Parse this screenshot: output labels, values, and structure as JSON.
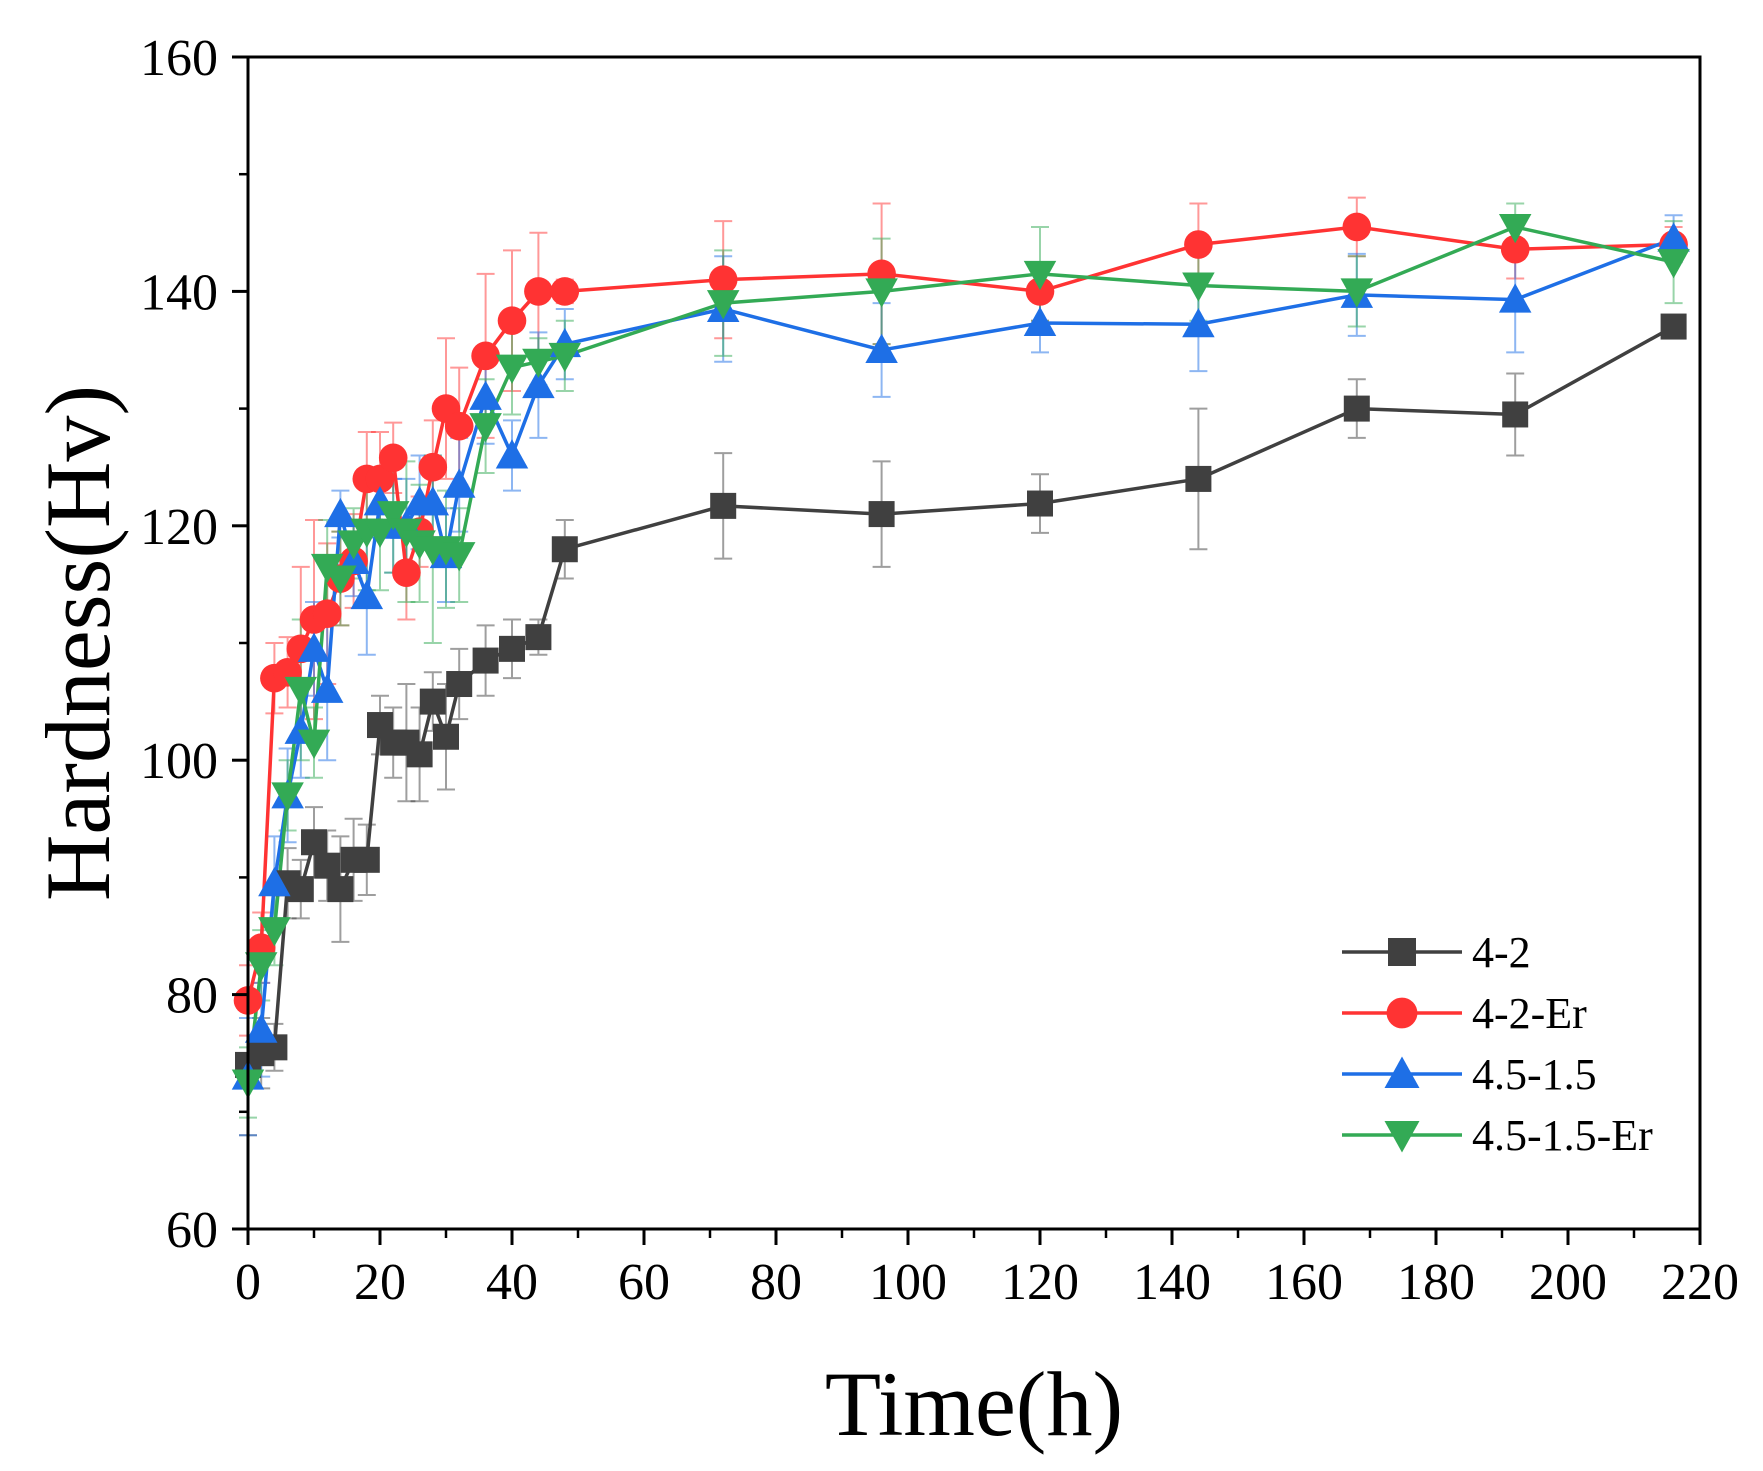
{
  "chart_data": {
    "type": "line",
    "title": "",
    "xlabel": "Time(h)",
    "ylabel": "Hardness(Hv)",
    "xlim": [
      0,
      220
    ],
    "ylim": [
      60,
      160
    ],
    "xticks": [
      0,
      20,
      40,
      60,
      80,
      100,
      120,
      140,
      160,
      180,
      200,
      220
    ],
    "yticks": [
      60,
      80,
      100,
      120,
      140,
      160
    ],
    "grid": false,
    "legend_position": "bottom-right",
    "series": [
      {
        "name": "4-2",
        "color": "#404040",
        "marker": "square",
        "x": [
          0,
          2,
          4,
          6,
          8,
          10,
          12,
          14,
          16,
          18,
          20,
          22,
          24,
          26,
          28,
          30,
          32,
          36,
          40,
          44,
          48,
          72,
          96,
          120,
          144,
          168,
          192,
          216
        ],
        "y": [
          74,
          75,
          75.5,
          89.5,
          89,
          93,
          91,
          89,
          91.5,
          91.5,
          103,
          101.5,
          101.5,
          100.5,
          105,
          102,
          106.5,
          108.5,
          109.5,
          110.5,
          118,
          121.7,
          121,
          121.9,
          124,
          130,
          129.5,
          137
        ],
        "err": [
          6,
          3,
          2,
          3,
          2.5,
          3,
          3,
          4.5,
          3.5,
          3,
          2.5,
          3,
          5,
          4,
          2.5,
          4.5,
          3,
          3,
          2.5,
          1.5,
          2.5,
          4.5,
          4.5,
          2.5,
          6,
          2.5,
          3.5,
          0
        ]
      },
      {
        "name": "4-2-Er",
        "color": "#ff3333",
        "marker": "circle",
        "x": [
          0,
          2,
          4,
          6,
          8,
          10,
          12,
          14,
          16,
          18,
          20,
          22,
          24,
          26,
          28,
          30,
          32,
          36,
          40,
          44,
          48,
          72,
          96,
          120,
          144,
          168,
          192,
          216
        ],
        "y": [
          79.5,
          84,
          107,
          107.5,
          109.5,
          112,
          112.5,
          115.5,
          117,
          124,
          124,
          125.8,
          116,
          119.5,
          125,
          130,
          128.5,
          134.5,
          137.5,
          140,
          140,
          141,
          141.5,
          140,
          144,
          145.5,
          143.6,
          144
        ],
        "err": [
          3,
          3,
          3,
          3,
          7,
          8.5,
          6,
          4,
          4,
          4,
          4,
          3,
          4,
          3,
          4,
          6,
          5,
          7,
          6,
          5,
          1,
          5,
          6,
          2.5,
          3.5,
          2.5,
          2.5,
          1.5
        ]
      },
      {
        "name": "4.5-1.5",
        "color": "#1e6fe6",
        "marker": "triangle-up",
        "x": [
          0,
          2,
          4,
          6,
          8,
          10,
          12,
          14,
          16,
          18,
          20,
          22,
          24,
          26,
          28,
          30,
          32,
          36,
          40,
          44,
          48,
          72,
          96,
          120,
          144,
          168,
          192,
          216
        ],
        "y": [
          73,
          77,
          89.5,
          97,
          102.5,
          109.5,
          106,
          121,
          117,
          114,
          122,
          120,
          120,
          122,
          122,
          117.5,
          123.5,
          131,
          126,
          132,
          135.5,
          138.5,
          135,
          137.3,
          137.2,
          139.7,
          139.3,
          144.5
        ],
        "err": [
          5,
          4,
          4,
          4,
          4,
          4,
          6,
          2,
          3,
          5,
          3,
          4,
          4,
          4,
          4,
          4,
          4,
          4,
          3,
          4.5,
          3,
          4.5,
          4,
          2.5,
          4,
          3.5,
          4.5,
          2
        ]
      },
      {
        "name": "4.5-1.5-Er",
        "color": "#33aa55",
        "marker": "triangle-down",
        "x": [
          0,
          2,
          4,
          6,
          8,
          10,
          12,
          14,
          16,
          18,
          20,
          22,
          24,
          26,
          28,
          30,
          32,
          36,
          40,
          44,
          48,
          72,
          96,
          120,
          144,
          168,
          192,
          216
        ],
        "y": [
          72.5,
          82.5,
          85.5,
          97,
          106,
          101.5,
          116.5,
          115.5,
          118.5,
          119.5,
          119.5,
          121,
          119.5,
          118.5,
          118,
          118,
          117.5,
          128.5,
          133.5,
          134,
          134.5,
          139,
          140,
          141.5,
          140.5,
          140,
          145.5,
          142.5
        ],
        "err": [
          3,
          3,
          3,
          3,
          6,
          3,
          4,
          4,
          3,
          5,
          5,
          5,
          6,
          5,
          8,
          5,
          4,
          4,
          4,
          2,
          3,
          4.5,
          4.5,
          4,
          3,
          3,
          2,
          3.5
        ]
      }
    ]
  }
}
